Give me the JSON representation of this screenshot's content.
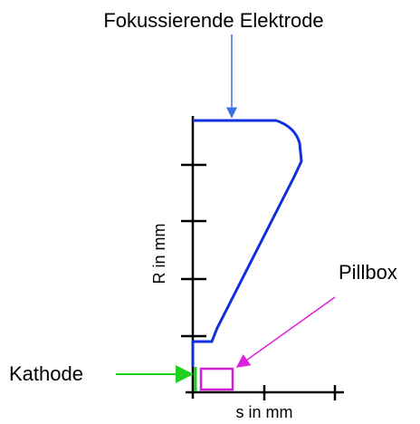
{
  "title": "Fokussierende Elektrode",
  "y_axis_label": "R in mm",
  "x_axis_label": "s in mm",
  "labels": {
    "pillbox": "Pillbox",
    "cathode": "Kathode"
  }
}
